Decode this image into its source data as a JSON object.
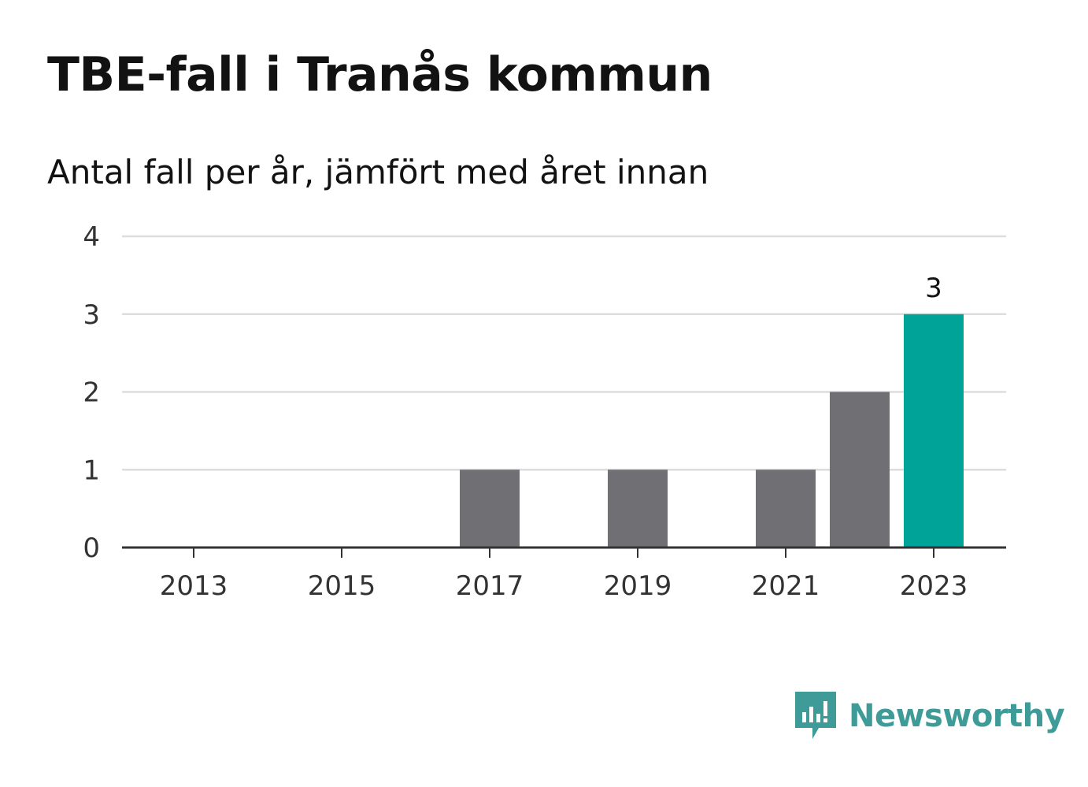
{
  "title": "TBE-fall i Tranås kommun",
  "subtitle": "Antal fall per år, jämfört med året innan",
  "chart_data": {
    "type": "bar",
    "categories": [
      "2013",
      "2014",
      "2015",
      "2016",
      "2017",
      "2018",
      "2019",
      "2020",
      "2021",
      "2022",
      "2023"
    ],
    "values": [
      0,
      0,
      0,
      0,
      1,
      0,
      1,
      0,
      1,
      2,
      3
    ],
    "x_tick_labels": [
      "2013",
      "2015",
      "2017",
      "2019",
      "2021",
      "2023"
    ],
    "y_ticks": [
      "0",
      "1",
      "2",
      "3",
      "4"
    ],
    "ylim": [
      0,
      4
    ],
    "highlight_category": "2023",
    "highlight_label": "3",
    "grid": true,
    "colors": {
      "bar": "#706f74",
      "highlight": "#00a398",
      "grid": "#dddddd",
      "axis": "#333333"
    }
  },
  "brand": {
    "name": "Newsworthy",
    "icon": "newsworthy-logo-icon",
    "color": "#3f9b97"
  }
}
